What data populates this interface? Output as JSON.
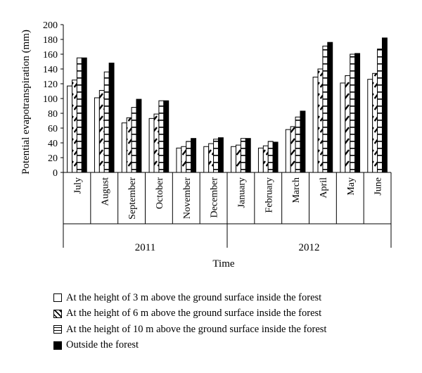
{
  "chart_data": {
    "type": "bar",
    "ylabel": "Potential evapotranspiration (mm)",
    "xlabel": "Time",
    "ylim": [
      0,
      200
    ],
    "yticks": [
      0,
      20,
      40,
      60,
      80,
      100,
      120,
      140,
      160,
      180,
      200
    ],
    "categories": [
      "July",
      "August",
      "September",
      "October",
      "November",
      "December",
      "January",
      "February",
      "March",
      "April",
      "May",
      "June"
    ],
    "groups": [
      {
        "label": "2011",
        "span": 6
      },
      {
        "label": "2012",
        "span": 6
      }
    ],
    "series": [
      {
        "name": "At the height of 3 m above the ground surface inside the forest",
        "pattern": "hollow",
        "values": [
          117,
          101,
          67,
          73,
          33,
          35,
          35,
          33,
          58,
          129,
          121,
          126
        ]
      },
      {
        "name": "At the height of 6 m above the ground surface inside the forest",
        "pattern": "hatched",
        "values": [
          125,
          111,
          74,
          79,
          35,
          39,
          37,
          36,
          62,
          140,
          131,
          134
        ]
      },
      {
        "name": "At the height of 10 m above the ground surface inside the forest",
        "pattern": "striped",
        "values": [
          155,
          136,
          88,
          97,
          42,
          45,
          46,
          42,
          75,
          171,
          160,
          167
        ]
      },
      {
        "name": "Outside the forest",
        "pattern": "solid",
        "values": [
          155,
          148,
          99,
          97,
          46,
          47,
          46,
          41,
          83,
          176,
          161,
          182
        ]
      }
    ],
    "legend_position": "bottom",
    "grid": false
  }
}
